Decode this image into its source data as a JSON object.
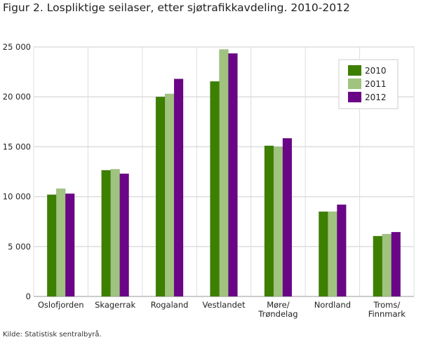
{
  "chart_data": {
    "type": "bar",
    "title": "Figur 2. Lospliktige seilaser, etter sjøtrafikkavdeling. 2010-2012",
    "categories": [
      [
        "Oslofjorden"
      ],
      [
        "Skagerrak"
      ],
      [
        "Rogaland"
      ],
      [
        "Vestlandet"
      ],
      [
        "Møre/",
        "Trøndelag"
      ],
      [
        "Nordland"
      ],
      [
        "Troms/",
        "Finnmark"
      ]
    ],
    "series": [
      {
        "name": "2010",
        "color": "#3d8000",
        "values": [
          10200,
          12650,
          20000,
          21550,
          15100,
          8500,
          6050
        ]
      },
      {
        "name": "2011",
        "color": "#a0c47f",
        "values": [
          10800,
          12750,
          20300,
          24750,
          15000,
          8500,
          6250
        ]
      },
      {
        "name": "2012",
        "color": "#6b0587",
        "values": [
          10300,
          12300,
          21800,
          24350,
          15850,
          9200,
          6450
        ]
      }
    ],
    "yticks": [
      "0",
      "5 000",
      "10 000",
      "15 000",
      "20 000",
      "25 000"
    ],
    "ylim": [
      0,
      25000
    ],
    "grid": true,
    "legend": "top-right",
    "xlabel": "",
    "ylabel": ""
  },
  "source": "Kilde: Statistisk sentralbyrå."
}
